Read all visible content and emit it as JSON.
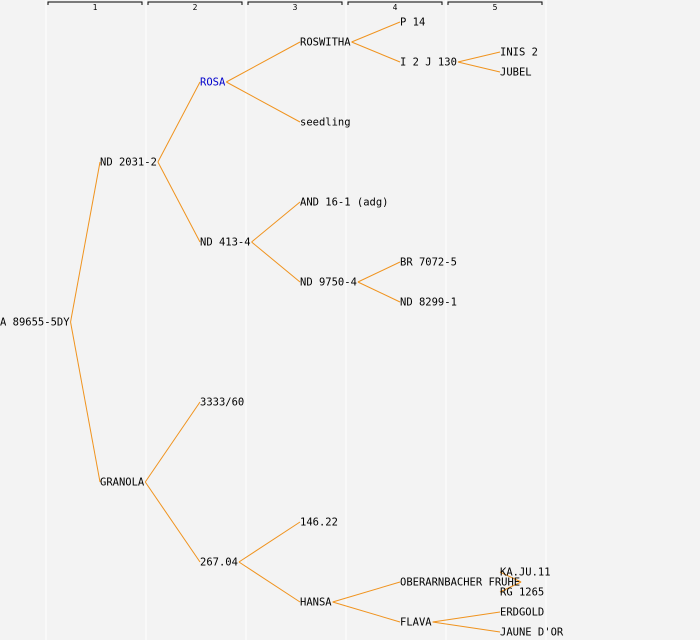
{
  "generations": [
    "1",
    "2",
    "3",
    "4",
    "5"
  ],
  "colors": {
    "edge": "#f0931e",
    "highlight": "#0000cc",
    "text": "#000000",
    "background": "#f3f3f3"
  },
  "tree": {
    "label": "A 89655-5DY",
    "children": [
      {
        "label": "ND 2031-2",
        "children": [
          {
            "label": "ROSA",
            "highlight": true,
            "children": [
              {
                "label": "ROSWITHA",
                "children": [
                  {
                    "label": "P 14"
                  },
                  {
                    "label": "I 2 J 130",
                    "children": [
                      {
                        "label": "INIS 2"
                      },
                      {
                        "label": "JUBEL"
                      }
                    ]
                  }
                ]
              },
              {
                "label": "seedling"
              }
            ]
          },
          {
            "label": "ND 413-4",
            "children": [
              {
                "label": "AND 16-1 (adg)"
              },
              {
                "label": "ND 9750-4",
                "children": [
                  {
                    "label": "BR 7072-5"
                  },
                  {
                    "label": "ND 8299-1"
                  }
                ]
              }
            ]
          }
        ]
      },
      {
        "label": "GRANOLA",
        "children": [
          {
            "label": "3333/60"
          },
          {
            "label": "267.04",
            "children": [
              {
                "label": "146.22"
              },
              {
                "label": "HANSA",
                "children": [
                  {
                    "label": "OBERARNBACHER FRUHE",
                    "children": [
                      {
                        "label": "KA.JU.11"
                      },
                      {
                        "label": "RG 1265"
                      }
                    ]
                  },
                  {
                    "label": "FLAVA",
                    "children": [
                      {
                        "label": "ERDGOLD"
                      },
                      {
                        "label": "JAUNE D'OR"
                      }
                    ]
                  }
                ]
              }
            ]
          }
        ]
      }
    ]
  }
}
